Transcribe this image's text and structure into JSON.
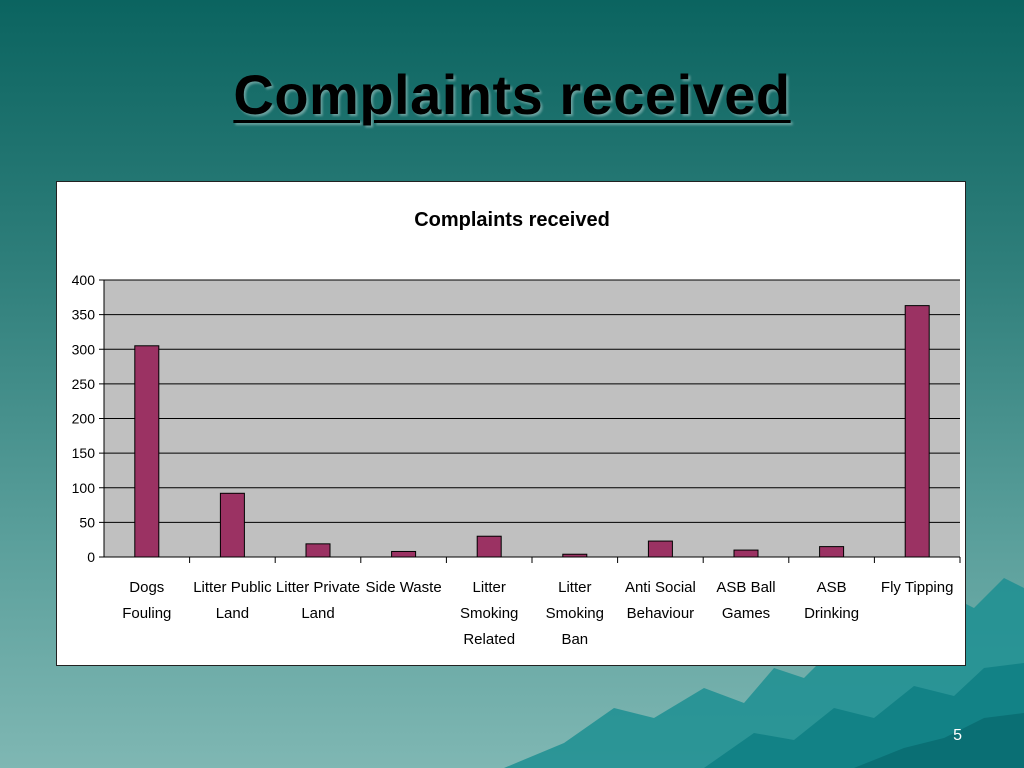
{
  "slide": {
    "title": "Complaints received",
    "page_number": "5"
  },
  "colors": {
    "bar": "#9b3263",
    "plot_bg": "#c0c0c0",
    "grid": "#000000"
  },
  "chart_data": {
    "type": "bar",
    "title": "Complaints received",
    "xlabel": "",
    "ylabel": "",
    "ylim": [
      0,
      400
    ],
    "yticks": [
      0,
      50,
      100,
      150,
      200,
      250,
      300,
      350,
      400
    ],
    "grid": true,
    "legend": "none",
    "categories": [
      [
        "Dogs",
        "Fouling"
      ],
      [
        "Litter Public",
        "Land"
      ],
      [
        "Litter Private",
        "Land"
      ],
      [
        "Side Waste"
      ],
      [
        "Litter",
        "Smoking",
        "Related"
      ],
      [
        "Litter",
        "Smoking",
        "Ban"
      ],
      [
        "Anti Social",
        "Behaviour"
      ],
      [
        "ASB Ball",
        "Games"
      ],
      [
        "ASB",
        "Drinking"
      ],
      [
        "Fly Tipping"
      ]
    ],
    "values": [
      305,
      92,
      19,
      8,
      30,
      4,
      23,
      10,
      15,
      363
    ]
  }
}
